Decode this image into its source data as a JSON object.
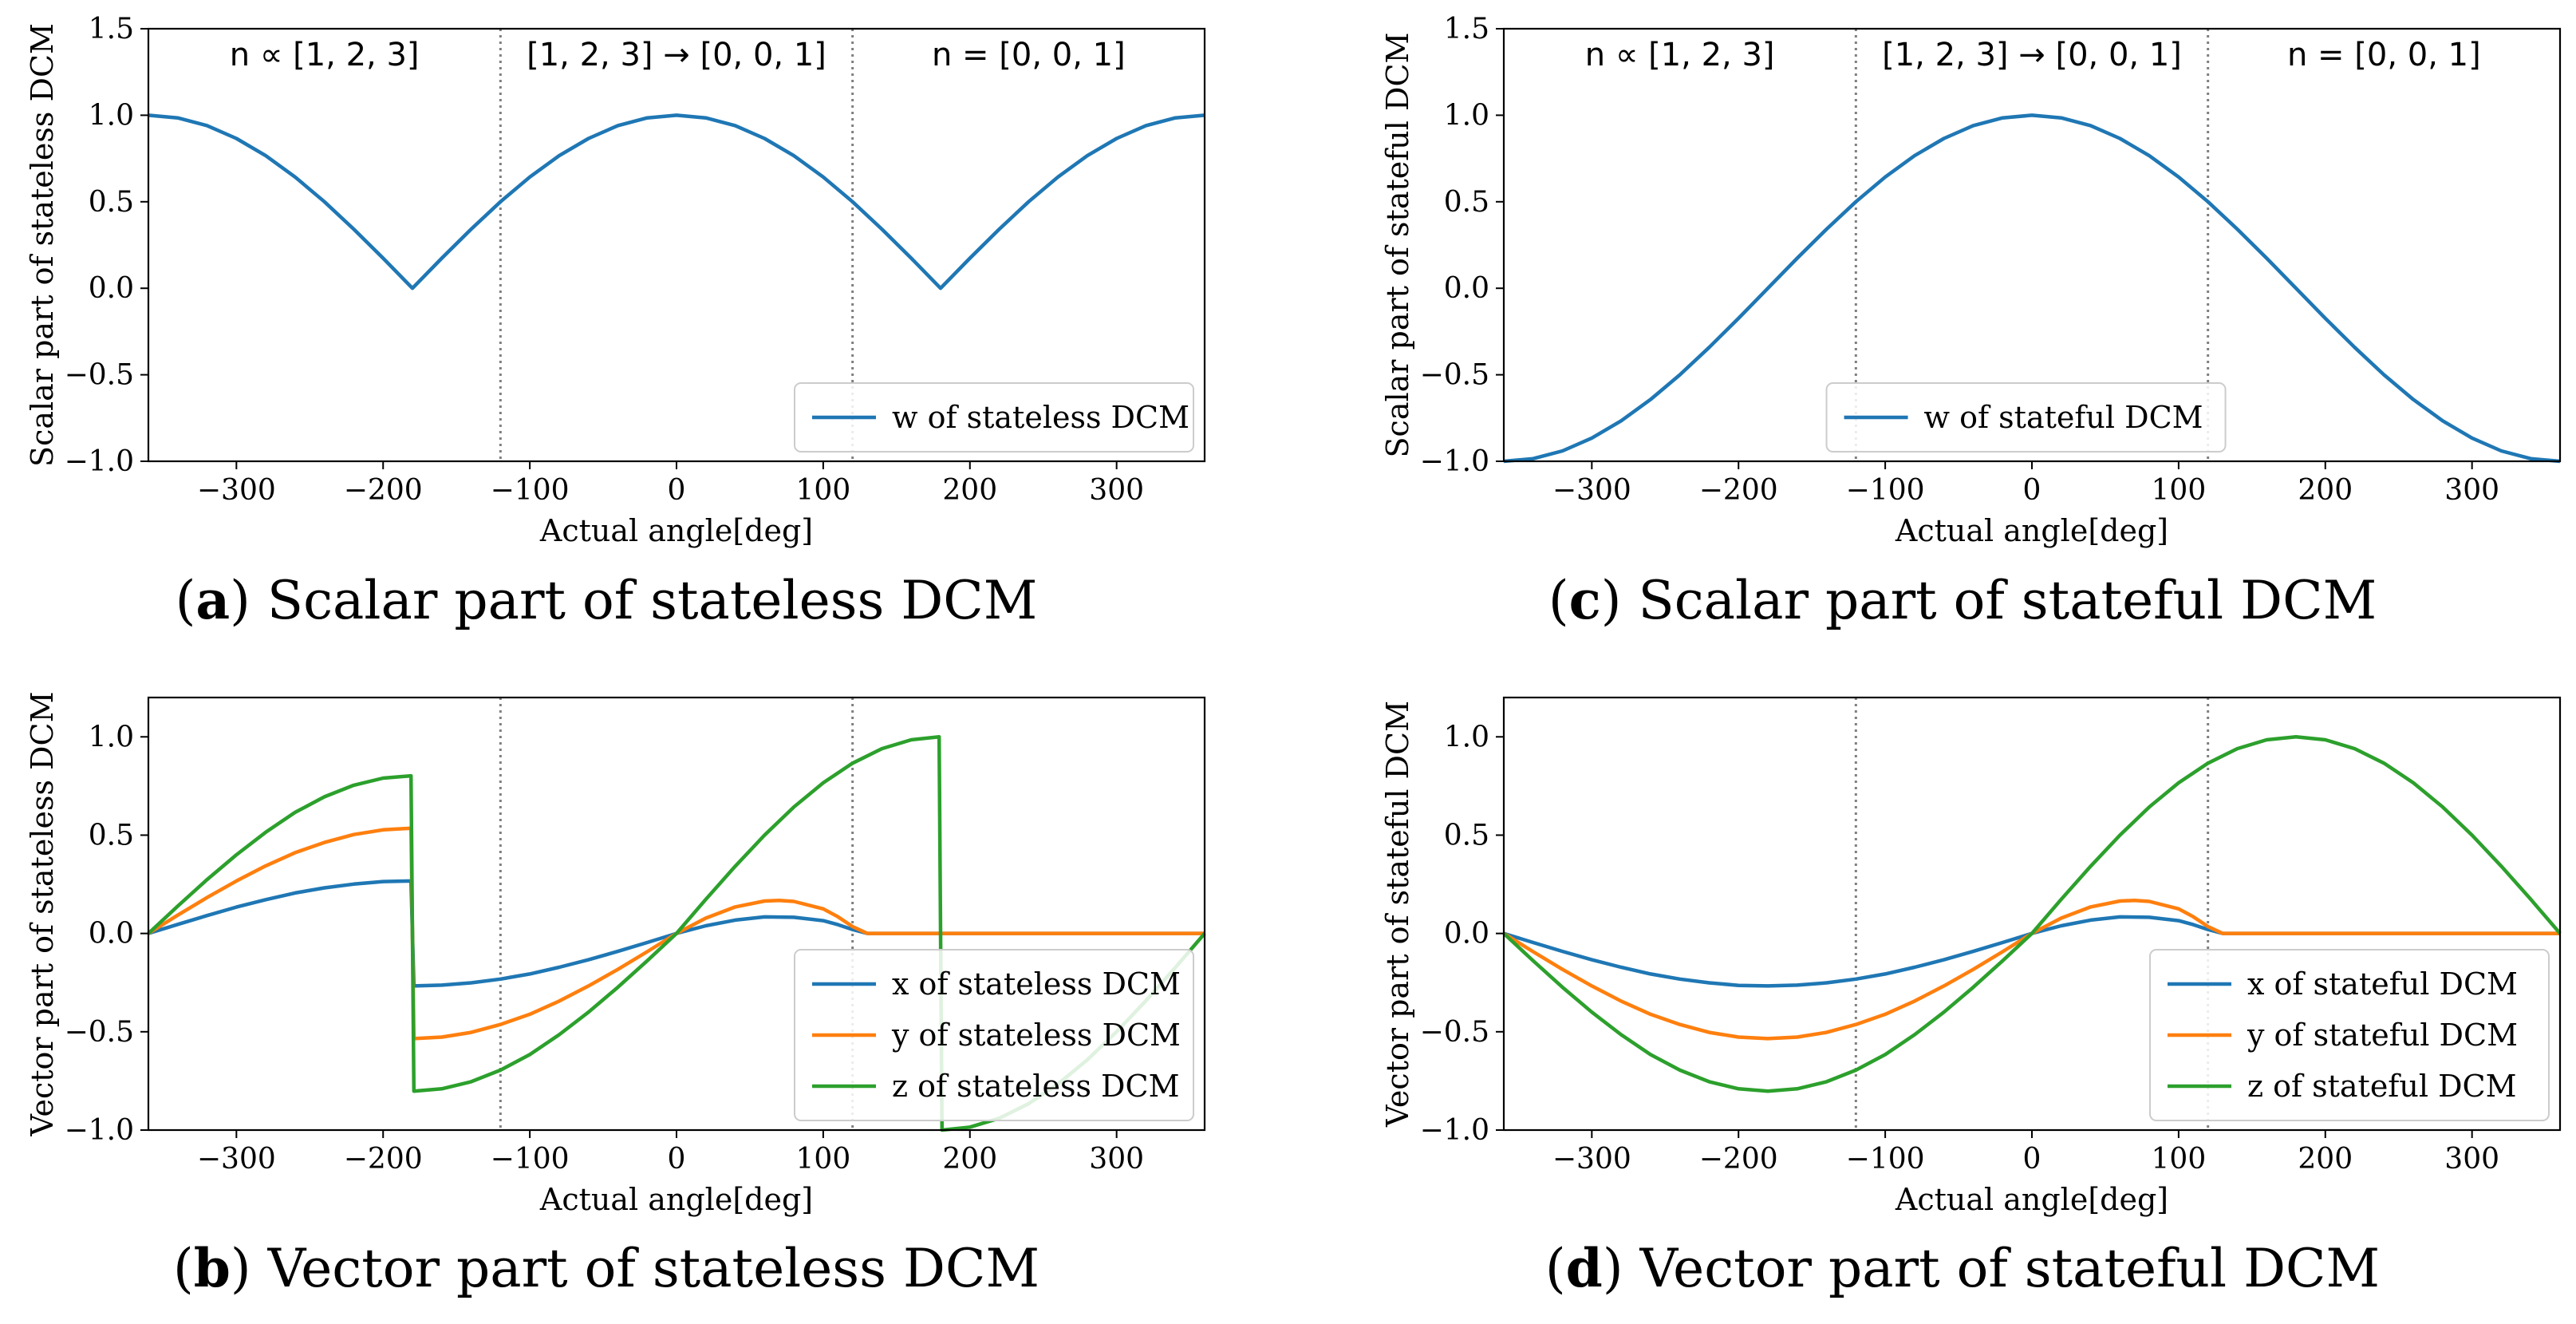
{
  "colors": {
    "blue": "#1f77b4",
    "orange": "#ff7f0e",
    "green": "#2ca02c",
    "vline": "#7f7f7f"
  },
  "chart_data": [
    {
      "id": "a",
      "type": "line",
      "caption_letter": "a",
      "caption_text": "Scalar part of stateless DCM",
      "xlabel": "Actual angle[deg]",
      "ylabel": "Scalar part of stateless DCM",
      "xlim": [
        -360,
        360
      ],
      "ylim": [
        -1.0,
        1.5
      ],
      "xticks": [
        -300,
        -200,
        -100,
        0,
        100,
        200,
        300
      ],
      "yticks": [
        -1.0,
        -0.5,
        0.0,
        0.5,
        1.0,
        1.5
      ],
      "vlines": [
        -120,
        120
      ],
      "region_labels": [
        "n ∝ [1, 2, 3]",
        "[1, 2, 3] → [0, 0, 1]",
        "n = [0, 0, 1]"
      ],
      "legend_position": "lower-right",
      "series": [
        {
          "name": "w of stateless DCM",
          "color": "blue",
          "x": [
            -360,
            -340,
            -320,
            -300,
            -280,
            -260,
            -240,
            -220,
            -200,
            -180,
            -160,
            -140,
            -120,
            -100,
            -80,
            -60,
            -40,
            -20,
            0,
            20,
            40,
            60,
            80,
            100,
            120,
            140,
            160,
            180,
            200,
            220,
            240,
            260,
            280,
            300,
            320,
            340,
            360
          ],
          "y": [
            1.0,
            0.985,
            0.94,
            0.866,
            0.766,
            0.643,
            0.5,
            0.342,
            0.174,
            0.0,
            0.174,
            0.342,
            0.5,
            0.643,
            0.766,
            0.866,
            0.94,
            0.985,
            1.0,
            0.985,
            0.94,
            0.866,
            0.766,
            0.643,
            0.5,
            0.342,
            0.174,
            0.0,
            0.174,
            0.342,
            0.5,
            0.643,
            0.766,
            0.866,
            0.94,
            0.985,
            1.0
          ]
        }
      ]
    },
    {
      "id": "c",
      "type": "line",
      "caption_letter": "c",
      "caption_text": "Scalar part of stateful DCM",
      "xlabel": "Actual angle[deg]",
      "ylabel": "Scalar part of stateful DCM",
      "xlim": [
        -360,
        360
      ],
      "ylim": [
        -1.0,
        1.5
      ],
      "xticks": [
        -300,
        -200,
        -100,
        0,
        100,
        200,
        300
      ],
      "yticks": [
        -1.0,
        -0.5,
        0.0,
        0.5,
        1.0,
        1.5
      ],
      "vlines": [
        -120,
        120
      ],
      "region_labels": [
        "n ∝ [1, 2, 3]",
        "[1, 2, 3] → [0, 0, 1]",
        "n = [0, 0, 1]"
      ],
      "legend_position": "lower-center",
      "series": [
        {
          "name": "w of stateful DCM",
          "color": "blue",
          "x": [
            -360,
            -340,
            -320,
            -300,
            -280,
            -260,
            -240,
            -220,
            -200,
            -180,
            -160,
            -140,
            -120,
            -100,
            -80,
            -60,
            -40,
            -20,
            0,
            20,
            40,
            60,
            80,
            100,
            120,
            140,
            160,
            180,
            200,
            220,
            240,
            260,
            280,
            300,
            320,
            340,
            360
          ],
          "y": [
            -1.0,
            -0.985,
            -0.94,
            -0.866,
            -0.766,
            -0.643,
            -0.5,
            -0.342,
            -0.174,
            0.0,
            0.174,
            0.342,
            0.5,
            0.643,
            0.766,
            0.866,
            0.94,
            0.985,
            1.0,
            0.985,
            0.94,
            0.866,
            0.766,
            0.643,
            0.5,
            0.342,
            0.174,
            0.0,
            -0.174,
            -0.342,
            -0.5,
            -0.643,
            -0.766,
            -0.866,
            -0.94,
            -0.985,
            -1.0
          ]
        }
      ]
    },
    {
      "id": "b",
      "type": "line",
      "caption_letter": "b",
      "caption_text": "Vector part of stateless DCM",
      "xlabel": "Actual angle[deg]",
      "ylabel": "Vector part of stateless DCM",
      "xlim": [
        -360,
        360
      ],
      "ylim": [
        -1.0,
        1.2
      ],
      "xticks": [
        -300,
        -200,
        -100,
        0,
        100,
        200,
        300
      ],
      "yticks": [
        -1.0,
        -0.5,
        0.0,
        0.5,
        1.0
      ],
      "vlines": [
        -120,
        120
      ],
      "region_labels": [],
      "legend_position": "lower-right",
      "series": [
        {
          "name": "x of stateless DCM",
          "color": "blue",
          "x": [
            -360,
            -340,
            -320,
            -300,
            -280,
            -260,
            -240,
            -220,
            -200,
            -181,
            -179,
            -160,
            -140,
            -120,
            -100,
            -80,
            -60,
            -40,
            -20,
            0,
            20,
            40,
            60,
            80,
            100,
            110,
            120,
            130,
            140,
            160,
            180,
            200,
            220,
            240,
            260,
            280,
            300,
            320,
            340,
            360
          ],
          "y": [
            0.0,
            0.046,
            0.091,
            0.134,
            0.172,
            0.206,
            0.232,
            0.251,
            0.264,
            0.267,
            -0.267,
            -0.263,
            -0.251,
            -0.232,
            -0.206,
            -0.172,
            -0.134,
            -0.091,
            -0.046,
            0.0,
            0.039,
            0.068,
            0.084,
            0.082,
            0.065,
            0.045,
            0.02,
            0.0,
            0.0,
            0.0,
            0.0,
            0.0,
            0.0,
            0.0,
            0.0,
            0.0,
            0.0,
            0.0,
            0.0,
            0.0
          ]
        },
        {
          "name": "y of stateless DCM",
          "color": "orange",
          "x": [
            -360,
            -340,
            -320,
            -300,
            -280,
            -260,
            -240,
            -220,
            -200,
            -181,
            -179,
            -160,
            -140,
            -120,
            -100,
            -80,
            -60,
            -40,
            -20,
            0,
            20,
            40,
            60,
            70,
            80,
            100,
            110,
            120,
            130,
            140,
            160,
            180,
            200,
            220,
            240,
            260,
            280,
            300,
            320,
            340,
            360
          ],
          "y": [
            0.0,
            0.093,
            0.183,
            0.267,
            0.344,
            0.411,
            0.463,
            0.503,
            0.527,
            0.535,
            -0.535,
            -0.527,
            -0.503,
            -0.463,
            -0.411,
            -0.344,
            -0.267,
            -0.183,
            -0.093,
            0.0,
            0.078,
            0.135,
            0.165,
            0.168,
            0.163,
            0.125,
            0.085,
            0.035,
            0.0,
            0.0,
            0.0,
            0.0,
            0.0,
            0.0,
            0.0,
            0.0,
            0.0,
            0.0,
            0.0,
            0.0,
            0.0
          ]
        },
        {
          "name": "z of stateless DCM",
          "color": "green",
          "x": [
            -360,
            -340,
            -320,
            -300,
            -280,
            -260,
            -240,
            -220,
            -200,
            -181,
            -179,
            -160,
            -140,
            -120,
            -100,
            -80,
            -60,
            -40,
            -20,
            0,
            20,
            40,
            60,
            80,
            100,
            120,
            140,
            160,
            179,
            181,
            200,
            220,
            240,
            260,
            280,
            300,
            320,
            340,
            360
          ],
          "y": [
            0.0,
            0.139,
            0.274,
            0.4,
            0.515,
            0.616,
            0.695,
            0.754,
            0.79,
            0.802,
            -0.802,
            -0.79,
            -0.754,
            -0.695,
            -0.616,
            -0.515,
            -0.4,
            -0.274,
            -0.139,
            0.0,
            0.174,
            0.342,
            0.5,
            0.643,
            0.766,
            0.866,
            0.94,
            0.985,
            1.0,
            -1.0,
            -0.985,
            -0.94,
            -0.866,
            -0.766,
            -0.643,
            -0.5,
            -0.342,
            -0.174,
            0.0
          ]
        }
      ]
    },
    {
      "id": "d",
      "type": "line",
      "caption_letter": "d",
      "caption_text": "Vector part of stateful DCM",
      "xlabel": "Actual angle[deg]",
      "ylabel": "Vector part of stateful DCM",
      "xlim": [
        -360,
        360
      ],
      "ylim": [
        -1.0,
        1.2
      ],
      "xticks": [
        -300,
        -200,
        -100,
        0,
        100,
        200,
        300
      ],
      "yticks": [
        -1.0,
        -0.5,
        0.0,
        0.5,
        1.0
      ],
      "vlines": [
        -120,
        120
      ],
      "region_labels": [],
      "legend_position": "lower-right",
      "series": [
        {
          "name": "x of stateful DCM",
          "color": "blue",
          "x": [
            -360,
            -340,
            -320,
            -300,
            -280,
            -260,
            -240,
            -220,
            -200,
            -180,
            -160,
            -140,
            -120,
            -100,
            -80,
            -60,
            -40,
            -20,
            0,
            20,
            40,
            60,
            80,
            100,
            110,
            120,
            130,
            140,
            160,
            180,
            200,
            220,
            240,
            260,
            280,
            300,
            320,
            340,
            360
          ],
          "y": [
            0.0,
            -0.046,
            -0.091,
            -0.134,
            -0.172,
            -0.206,
            -0.232,
            -0.251,
            -0.264,
            -0.267,
            -0.263,
            -0.251,
            -0.232,
            -0.206,
            -0.172,
            -0.134,
            -0.091,
            -0.046,
            0.0,
            0.039,
            0.068,
            0.084,
            0.082,
            0.065,
            0.045,
            0.02,
            0.0,
            0.0,
            0.0,
            0.0,
            0.0,
            0.0,
            0.0,
            0.0,
            0.0,
            0.0,
            0.0,
            0.0,
            0.0
          ]
        },
        {
          "name": "y of stateful DCM",
          "color": "orange",
          "x": [
            -360,
            -340,
            -320,
            -300,
            -280,
            -260,
            -240,
            -220,
            -200,
            -180,
            -160,
            -140,
            -120,
            -100,
            -80,
            -60,
            -40,
            -20,
            0,
            20,
            40,
            60,
            70,
            80,
            100,
            110,
            120,
            130,
            140,
            160,
            180,
            200,
            220,
            240,
            260,
            280,
            300,
            320,
            340,
            360
          ],
          "y": [
            0.0,
            -0.093,
            -0.183,
            -0.267,
            -0.344,
            -0.411,
            -0.463,
            -0.503,
            -0.527,
            -0.535,
            -0.527,
            -0.503,
            -0.463,
            -0.411,
            -0.344,
            -0.267,
            -0.183,
            -0.093,
            0.0,
            0.078,
            0.135,
            0.165,
            0.168,
            0.163,
            0.125,
            0.085,
            0.035,
            0.0,
            0.0,
            0.0,
            0.0,
            0.0,
            0.0,
            0.0,
            0.0,
            0.0,
            0.0,
            0.0,
            0.0,
            0.0
          ]
        },
        {
          "name": "z of stateful DCM",
          "color": "green",
          "x": [
            -360,
            -340,
            -320,
            -300,
            -280,
            -260,
            -240,
            -220,
            -200,
            -180,
            -160,
            -140,
            -120,
            -100,
            -80,
            -60,
            -40,
            -20,
            0,
            20,
            40,
            60,
            80,
            100,
            120,
            140,
            160,
            180,
            200,
            220,
            240,
            260,
            280,
            300,
            320,
            340,
            360
          ],
          "y": [
            0.0,
            -0.139,
            -0.274,
            -0.4,
            -0.515,
            -0.616,
            -0.695,
            -0.754,
            -0.79,
            -0.802,
            -0.79,
            -0.754,
            -0.695,
            -0.616,
            -0.515,
            -0.4,
            -0.274,
            -0.139,
            0.0,
            0.174,
            0.342,
            0.5,
            0.643,
            0.766,
            0.866,
            0.94,
            0.985,
            1.0,
            0.985,
            0.94,
            0.866,
            0.766,
            0.643,
            0.5,
            0.342,
            0.174,
            0.0
          ]
        }
      ]
    }
  ]
}
